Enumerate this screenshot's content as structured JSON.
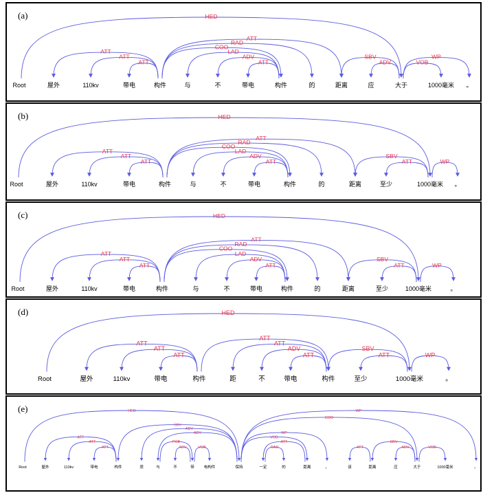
{
  "colors": {
    "arc": "#5a5ae0",
    "label": "#e8364e",
    "word": "#000000",
    "border": "#000000"
  },
  "panels": [
    {
      "label": "(a)",
      "words": [
        "Root",
        "屋外",
        "110kv",
        "带电",
        "构件",
        "与",
        "不",
        "带电",
        "构件",
        "的",
        "距离",
        "应",
        "大于",
        "1000毫米",
        "。"
      ],
      "arcs": [
        {
          "head": 0,
          "dep": 12,
          "rel": "HED"
        },
        {
          "head": 4,
          "dep": 1,
          "rel": "ATT"
        },
        {
          "head": 4,
          "dep": 2,
          "rel": "ATT"
        },
        {
          "head": 4,
          "dep": 3,
          "rel": "ATT"
        },
        {
          "head": 4,
          "dep": 9,
          "rel": "RAD"
        },
        {
          "head": 4,
          "dep": 10,
          "rel": "ATT"
        },
        {
          "head": 4,
          "dep": 8,
          "rel": "COO"
        },
        {
          "head": 8,
          "dep": 5,
          "rel": "LAD"
        },
        {
          "head": 8,
          "dep": 6,
          "rel": "ADV"
        },
        {
          "head": 8,
          "dep": 7,
          "rel": "ATT"
        },
        {
          "head": 12,
          "dep": 10,
          "rel": "SBV"
        },
        {
          "head": 12,
          "dep": 11,
          "rel": "ADV"
        },
        {
          "head": 12,
          "dep": 13,
          "rel": "VOB"
        },
        {
          "head": 12,
          "dep": 14,
          "rel": "WP"
        }
      ]
    },
    {
      "label": "(b)",
      "words": [
        "Root",
        "屋外",
        "110kv",
        "带电",
        "构件",
        "与",
        "不",
        "带电",
        "构件",
        "的",
        "距离",
        "至少",
        "1000毫米",
        "。"
      ],
      "arcs": [
        {
          "head": 0,
          "dep": 12,
          "rel": "HED"
        },
        {
          "head": 4,
          "dep": 1,
          "rel": "ATT"
        },
        {
          "head": 4,
          "dep": 2,
          "rel": "ATT"
        },
        {
          "head": 4,
          "dep": 3,
          "rel": "ATT"
        },
        {
          "head": 4,
          "dep": 9,
          "rel": "RAD"
        },
        {
          "head": 4,
          "dep": 10,
          "rel": "ATT"
        },
        {
          "head": 4,
          "dep": 8,
          "rel": "COO"
        },
        {
          "head": 8,
          "dep": 5,
          "rel": "LAD"
        },
        {
          "head": 8,
          "dep": 6,
          "rel": "ADV"
        },
        {
          "head": 8,
          "dep": 7,
          "rel": "ATT"
        },
        {
          "head": 12,
          "dep": 10,
          "rel": "SBV"
        },
        {
          "head": 12,
          "dep": 11,
          "rel": "ATT"
        },
        {
          "head": 12,
          "dep": 13,
          "rel": "WP"
        }
      ]
    },
    {
      "label": "(c)",
      "words": [
        "Root",
        "屋外",
        "110kv",
        "带电",
        "构件",
        "与",
        "不",
        "带电",
        "构件",
        "的",
        "距离",
        "至少",
        "1000毫米",
        "。"
      ],
      "arcs": [
        {
          "head": 0,
          "dep": 12,
          "rel": "HED"
        },
        {
          "head": 4,
          "dep": 1,
          "rel": "ATT"
        },
        {
          "head": 4,
          "dep": 2,
          "rel": "ATT"
        },
        {
          "head": 4,
          "dep": 3,
          "rel": "ATT"
        },
        {
          "head": 4,
          "dep": 9,
          "rel": "RAD"
        },
        {
          "head": 4,
          "dep": 10,
          "rel": "ATT"
        },
        {
          "head": 4,
          "dep": 8,
          "rel": "COO"
        },
        {
          "head": 8,
          "dep": 5,
          "rel": "LAD"
        },
        {
          "head": 8,
          "dep": 6,
          "rel": "ADV"
        },
        {
          "head": 8,
          "dep": 7,
          "rel": "ATT"
        },
        {
          "head": 12,
          "dep": 10,
          "rel": "SBV"
        },
        {
          "head": 12,
          "dep": 11,
          "rel": "ATT"
        },
        {
          "head": 12,
          "dep": 13,
          "rel": "WP"
        }
      ]
    },
    {
      "label": "(d)",
      "words": [
        "Root",
        "屋外",
        "110kv",
        "带电",
        "构件",
        "距",
        "不",
        "带电",
        "构件",
        "至少",
        "1000毫米",
        "。"
      ],
      "arcs": [
        {
          "head": 0,
          "dep": 10,
          "rel": "HED"
        },
        {
          "head": 4,
          "dep": 1,
          "rel": "ATT"
        },
        {
          "head": 4,
          "dep": 2,
          "rel": "ATT"
        },
        {
          "head": 4,
          "dep": 3,
          "rel": "ATT"
        },
        {
          "head": 4,
          "dep": 8,
          "rel": "ATT"
        },
        {
          "head": 8,
          "dep": 6,
          "rel": "ADV"
        },
        {
          "head": 8,
          "dep": 7,
          "rel": "ATT"
        },
        {
          "head": 8,
          "dep": 5,
          "rel": "ATT"
        },
        {
          "head": 10,
          "dep": 8,
          "rel": "SBV"
        },
        {
          "head": 10,
          "dep": 9,
          "rel": "ATT"
        },
        {
          "head": 10,
          "dep": 11,
          "rel": "WP"
        }
      ]
    },
    {
      "label": "(e)",
      "words": [
        "Root",
        "屋外",
        "110kv",
        "带电",
        "构件",
        "须",
        "与",
        "不",
        "带",
        "电构件",
        "保持",
        "一定",
        "的",
        "距离",
        "，",
        "该",
        "距离",
        "应",
        "大于",
        "1000毫米",
        "。"
      ],
      "arcs": [
        {
          "head": 0,
          "dep": 10,
          "rel": "HED"
        },
        {
          "head": 4,
          "dep": 1,
          "rel": "ATT"
        },
        {
          "head": 4,
          "dep": 2,
          "rel": "ATT"
        },
        {
          "head": 4,
          "dep": 3,
          "rel": "ATT"
        },
        {
          "head": 10,
          "dep": 4,
          "rel": "SBV"
        },
        {
          "head": 10,
          "dep": 5,
          "rel": "ADV"
        },
        {
          "head": 10,
          "dep": 6,
          "rel": "ADV"
        },
        {
          "head": 6,
          "dep": 8,
          "rel": "POB"
        },
        {
          "head": 8,
          "dep": 7,
          "rel": "ADV"
        },
        {
          "head": 8,
          "dep": 9,
          "rel": "VOB"
        },
        {
          "head": 10,
          "dep": 18,
          "rel": "COO"
        },
        {
          "head": 10,
          "dep": 20,
          "rel": "WP"
        },
        {
          "head": 10,
          "dep": 13,
          "rel": "VOB"
        },
        {
          "head": 10,
          "dep": 14,
          "rel": "WP"
        },
        {
          "head": 13,
          "dep": 11,
          "rel": "ATT"
        },
        {
          "head": 11,
          "dep": 12,
          "rel": "RAD"
        },
        {
          "head": 16,
          "dep": 15,
          "rel": "ATT"
        },
        {
          "head": 18,
          "dep": 16,
          "rel": "SBV"
        },
        {
          "head": 18,
          "dep": 17,
          "rel": "ADV"
        },
        {
          "head": 18,
          "dep": 19,
          "rel": "VOB"
        }
      ]
    }
  ]
}
